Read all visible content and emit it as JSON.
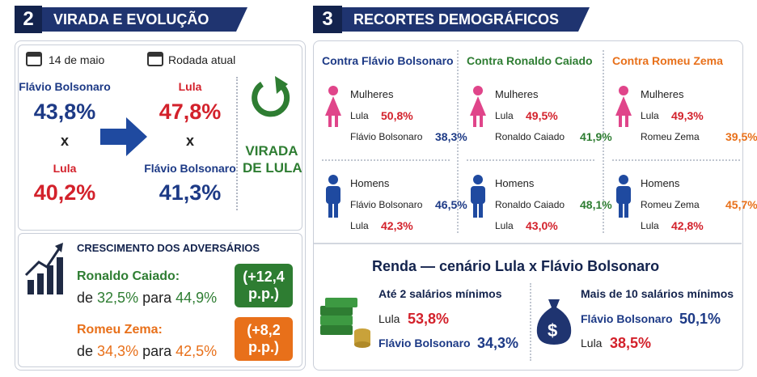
{
  "left": {
    "number": "2",
    "title": "VIRADA E EVOLUÇÃO",
    "before": {
      "date": "14 de maio",
      "first_name": "Flávio Bolsonaro",
      "first_value": "43,8%",
      "vs": "x",
      "second_name": "Lula",
      "second_value": "40,2%"
    },
    "after": {
      "date": "Rodada atual",
      "first_name": "Lula",
      "first_value": "47,8%",
      "vs": "x",
      "second_name": "Flávio Bolsonaro",
      "second_value": "41,3%"
    },
    "badge": [
      "VIRADA",
      "DE LULA"
    ],
    "growth": {
      "title": "CRESCIMENTO DOS ADVERSÁRIOS",
      "items": [
        {
          "name": "Ronaldo Caiado:",
          "from_word": "de",
          "from": "32,5%",
          "to_word": "para",
          "to": "44,9%",
          "delta": [
            "(+12,4",
            "p.p.)"
          ]
        },
        {
          "name": "Romeu Zema:",
          "from_word": "de",
          "from": "34,3%",
          "to_word": "para",
          "to": "42,5%",
          "delta": [
            "(+8,2",
            "p.p.)"
          ]
        }
      ]
    }
  },
  "right": {
    "number": "3",
    "title": "RECORTES DEMOGRÁFICOS",
    "columns": [
      {
        "title": "Contra Flávio Bolsonaro",
        "women": {
          "label": "Mulheres",
          "rows": [
            {
              "name": "Lula",
              "value": "50,8%"
            },
            {
              "name": "Flávio Bolsonaro",
              "value": "38,3%"
            }
          ]
        },
        "men": {
          "label": "Homens",
          "rows": [
            {
              "name": "Flávio Bolsonaro",
              "value": "46,5%"
            },
            {
              "name": "Lula",
              "value": "42,3%"
            }
          ]
        }
      },
      {
        "title": "Contra Ronaldo Caiado",
        "women": {
          "label": "Mulheres",
          "rows": [
            {
              "name": "Lula",
              "value": "49,5%"
            },
            {
              "name": "Ronaldo Caiado",
              "value": "41,9%"
            }
          ]
        },
        "men": {
          "label": "Homens",
          "rows": [
            {
              "name": "Ronaldo Caiado",
              "value": "48,1%"
            },
            {
              "name": "Lula",
              "value": "43,0%"
            }
          ]
        }
      },
      {
        "title": "Contra Romeu Zema",
        "women": {
          "label": "Mulheres",
          "rows": [
            {
              "name": "Lula",
              "value": "49,3%"
            },
            {
              "name": "Romeu Zema",
              "value": "39,5%"
            }
          ]
        },
        "men": {
          "label": "Homens",
          "rows": [
            {
              "name": "Romeu Zema",
              "value": "45,7%"
            },
            {
              "name": "Lula",
              "value": "42,8%"
            }
          ]
        }
      }
    ],
    "income": {
      "title": "Renda  — cenário Lula x Flávio Bolsonaro",
      "groups": [
        {
          "label": "Até 2 salários mínimos",
          "rows": [
            {
              "name": "Lula",
              "value": "53,8%"
            },
            {
              "name": "Flávio Bolsonaro",
              "value": "34,3%"
            }
          ]
        },
        {
          "label": "Mais de 10 salários mínimos",
          "icon_symbol": "$",
          "rows": [
            {
              "name": "Flávio Bolsonaro",
              "value": "50,1%"
            },
            {
              "name": "Lula",
              "value": "38,5%"
            }
          ]
        }
      ]
    }
  }
}
